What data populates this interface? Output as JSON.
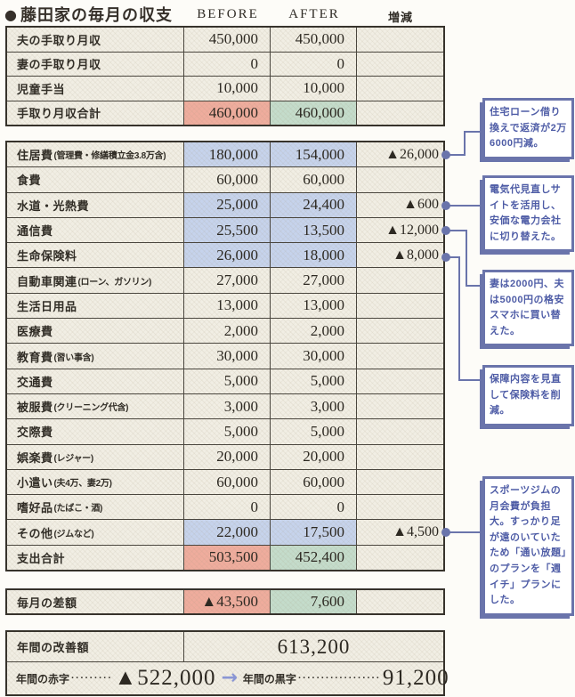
{
  "page": {
    "bullet": "●",
    "title": "藤田家の毎月の収支"
  },
  "columns": {
    "before": "BEFORE",
    "after": "AFTER",
    "diff": "増減"
  },
  "income_table": {
    "rows": [
      {
        "label": "夫の手取り月収",
        "note": "",
        "before": "450,000",
        "after": "450,000",
        "diff": "",
        "hl": ""
      },
      {
        "label": "妻の手取り月収",
        "note": "",
        "before": "0",
        "after": "0",
        "diff": "",
        "hl": ""
      },
      {
        "label": "児童手当",
        "note": "",
        "before": "10,000",
        "after": "10,000",
        "diff": "",
        "hl": ""
      },
      {
        "label": "手取り月収合計",
        "note": "",
        "before": "460,000",
        "after": "460,000",
        "diff": "",
        "hl": "total"
      }
    ]
  },
  "expense_table": {
    "rows": [
      {
        "label": "住居費",
        "note": "(管理費・修繕積立金3.8万含)",
        "before": "180,000",
        "after": "154,000",
        "diff": "▲26,000",
        "hl": "blue"
      },
      {
        "label": "食費",
        "note": "",
        "before": "60,000",
        "after": "60,000",
        "diff": "",
        "hl": ""
      },
      {
        "label": "水道・光熱費",
        "note": "",
        "before": "25,000",
        "after": "24,400",
        "diff": "▲600",
        "hl": "blue"
      },
      {
        "label": "通信費",
        "note": "",
        "before": "25,500",
        "after": "13,500",
        "diff": "▲12,000",
        "hl": "blue"
      },
      {
        "label": "生命保険料",
        "note": "",
        "before": "26,000",
        "after": "18,000",
        "diff": "▲8,000",
        "hl": "blue"
      },
      {
        "label": "自動車関連",
        "note": "(ローン、ガソリン)",
        "before": "27,000",
        "after": "27,000",
        "diff": "",
        "hl": ""
      },
      {
        "label": "生活日用品",
        "note": "",
        "before": "13,000",
        "after": "13,000",
        "diff": "",
        "hl": ""
      },
      {
        "label": "医療費",
        "note": "",
        "before": "2,000",
        "after": "2,000",
        "diff": "",
        "hl": ""
      },
      {
        "label": "教育費",
        "note": "(習い事含)",
        "before": "30,000",
        "after": "30,000",
        "diff": "",
        "hl": ""
      },
      {
        "label": "交通費",
        "note": "",
        "before": "5,000",
        "after": "5,000",
        "diff": "",
        "hl": ""
      },
      {
        "label": "被服費",
        "note": "(クリーニング代含)",
        "before": "3,000",
        "after": "3,000",
        "diff": "",
        "hl": ""
      },
      {
        "label": "交際費",
        "note": "",
        "before": "5,000",
        "after": "5,000",
        "diff": "",
        "hl": ""
      },
      {
        "label": "娯楽費",
        "note": "(レジャー)",
        "before": "20,000",
        "after": "20,000",
        "diff": "",
        "hl": ""
      },
      {
        "label": "小遣い",
        "note": "(夫4万、妻2万)",
        "before": "60,000",
        "after": "60,000",
        "diff": "",
        "hl": ""
      },
      {
        "label": "嗜好品",
        "note": "(たばこ・酒)",
        "before": "0",
        "after": "0",
        "diff": "",
        "hl": ""
      },
      {
        "label": "その他",
        "note": "(ジムなど)",
        "before": "22,000",
        "after": "17,500",
        "diff": "▲4,500",
        "hl": "blue"
      },
      {
        "label": "支出合計",
        "note": "",
        "before": "503,500",
        "after": "452,400",
        "diff": "",
        "hl": "total"
      }
    ]
  },
  "monthly_diff_row": {
    "label": "毎月の差額",
    "note": "",
    "before": "▲43,500",
    "after": "7,600",
    "diff": "",
    "hl": "total"
  },
  "annual_table": {
    "improvement_label": "年間の改善額",
    "improvement_value": "613,200",
    "deficit_label": "年間の赤字",
    "deficit_leader": "·········",
    "deficit_value": "▲522,000",
    "surplus_label": "年間の黒字",
    "surplus_leader": "··················",
    "surplus_value": "91,200"
  },
  "icons": {
    "right_arrow": "→"
  },
  "callouts": [
    {
      "text": "住宅ローン借り換えで返済が2万6000円減。"
    },
    {
      "text": "電気代見直しサイトを活用し、安価な電力会社に切り替えた。"
    },
    {
      "text": "妻は2000円、夫は5000円の格安スマホに買い替えた。"
    },
    {
      "text": "保障内容を見直して保険料を削減。"
    },
    {
      "text": "スポーツジムの月会費が負担大。すっかり足が遠のいていたため「通い放題」のプランを「週イチ」プランにした。"
    }
  ],
  "colors": {
    "highlight_red": "#efac9d",
    "highlight_green": "#c4dccb",
    "highlight_blue": "#c6d3ec",
    "callout_blue": "#6a74ab",
    "callout_text_blue": "#4e5ca6",
    "arrow_blue": "#8a96d4",
    "cell_cream": "#f1eee4"
  }
}
